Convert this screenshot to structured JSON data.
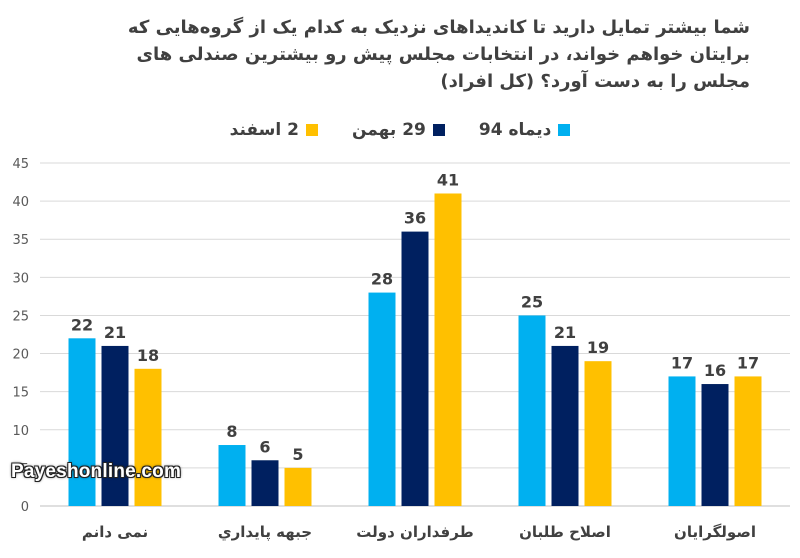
{
  "title_lines": [
    "شما بیشتر تمایل دارید تا کاندیداهای نزدیک به کدام یک از گروه‌هایی که",
    "برایتان خواهم خواند، در انتخابات مجلس پیش رو بیشترین صندلی های",
    "مجلس را به دست آورد؟ (کل افراد)"
  ],
  "watermark": "Payeshonline.com",
  "chart_data": {
    "type": "bar",
    "categories": [
      "نمی دانم",
      "جبهه پایداري",
      "طرفداران دولت",
      "اصلاح طلبان",
      "اصولگرايان"
    ],
    "series": [
      {
        "name": "دیماه 94",
        "color": "#00B0F0",
        "values": [
          22,
          8,
          28,
          25,
          17
        ]
      },
      {
        "name": "29 بهمن",
        "color": "#002060",
        "values": [
          21,
          6,
          36,
          21,
          16
        ]
      },
      {
        "name": "2 اسفند",
        "color": "#FFC000",
        "values": [
          18,
          5,
          41,
          19,
          17
        ]
      }
    ],
    "ylim": [
      0,
      45
    ],
    "yticks": [
      0,
      5,
      10,
      15,
      20,
      25,
      30,
      35,
      40,
      45
    ],
    "grid": true,
    "legend_position": "top",
    "xlabel": "",
    "ylabel": ""
  }
}
